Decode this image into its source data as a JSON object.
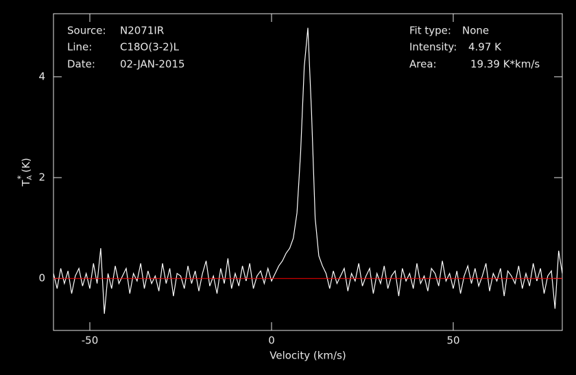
{
  "chart_data": {
    "type": "line",
    "xlabel": "Velocity (km/s)",
    "ylabel": {
      "symbol": "T",
      "subscript": "A",
      "superscript": "*",
      "unit": "(K)"
    },
    "info_left": [
      {
        "label": "Source:",
        "value": "N2071IR"
      },
      {
        "label": "Line:",
        "value": "C18O(3-2)L"
      },
      {
        "label": "Date:",
        "value": "02-JAN-2015"
      }
    ],
    "info_right": [
      {
        "label": "Fit type:",
        "value": "None"
      },
      {
        "label": "Intensity:",
        "value": "4.97 K"
      },
      {
        "label": "Area:",
        "value": "19.39 K*km/s"
      }
    ],
    "xlim": [
      -60,
      80
    ],
    "ylim": [
      -1.03,
      5.25
    ],
    "xticks": [
      -50,
      0,
      50
    ],
    "yticks": [
      0,
      2,
      4
    ],
    "baseline": {
      "value": 0,
      "color": "#ff0000"
    },
    "x": [
      -60,
      -59,
      -58,
      -57,
      -56,
      -55,
      -54,
      -53,
      -52,
      -51,
      -50,
      -49,
      -48,
      -47,
      -46,
      -45,
      -44,
      -43,
      -42,
      -41,
      -40,
      -39,
      -38,
      -37,
      -36,
      -35,
      -34,
      -33,
      -32,
      -31,
      -30,
      -29,
      -28,
      -27,
      -26,
      -25,
      -24,
      -23,
      -22,
      -21,
      -20,
      -19,
      -18,
      -17,
      -16,
      -15,
      -14,
      -13,
      -12,
      -11,
      -10,
      -9,
      -8,
      -7,
      -6,
      -5,
      -4,
      -3,
      -2,
      -1,
      0,
      1,
      2,
      3,
      4,
      5,
      6,
      7,
      8,
      9,
      10,
      11,
      12,
      13,
      14,
      15,
      16,
      17,
      18,
      19,
      20,
      21,
      22,
      23,
      24,
      25,
      26,
      27,
      28,
      29,
      30,
      31,
      32,
      33,
      34,
      35,
      36,
      37,
      38,
      39,
      40,
      41,
      42,
      43,
      44,
      45,
      46,
      47,
      48,
      49,
      50,
      51,
      52,
      53,
      54,
      55,
      56,
      57,
      58,
      59,
      60,
      61,
      62,
      63,
      64,
      65,
      66,
      67,
      68,
      69,
      70,
      71,
      72,
      73,
      74,
      75,
      76,
      77,
      78,
      79,
      80
    ],
    "series": [
      {
        "color": "#ffffff",
        "values": [
          0.1,
          -0.2,
          0.2,
          -0.1,
          0.15,
          -0.3,
          0.05,
          0.2,
          -0.15,
          0.1,
          -0.2,
          0.3,
          -0.1,
          0.6,
          -0.7,
          0.1,
          -0.2,
          0.25,
          -0.1,
          0.05,
          0.2,
          -0.3,
          0.1,
          -0.05,
          0.3,
          -0.2,
          0.15,
          -0.1,
          0.05,
          -0.25,
          0.3,
          -0.1,
          0.2,
          -0.35,
          0.1,
          0.05,
          -0.2,
          0.25,
          -0.1,
          0.15,
          -0.25,
          0.1,
          0.35,
          -0.15,
          0.05,
          -0.3,
          0.2,
          -0.1,
          0.4,
          -0.2,
          0.1,
          -0.15,
          0.25,
          -0.05,
          0.3,
          -0.2,
          0.05,
          0.15,
          -0.1,
          0.2,
          -0.05,
          0.1,
          0.25,
          0.35,
          0.5,
          0.6,
          0.8,
          1.3,
          2.5,
          4.2,
          4.97,
          3.3,
          1.2,
          0.45,
          0.25,
          0.1,
          -0.2,
          0.15,
          -0.1,
          0.05,
          0.2,
          -0.25,
          0.1,
          -0.05,
          0.3,
          -0.15,
          0.05,
          0.2,
          -0.3,
          0.1,
          -0.1,
          0.25,
          -0.2,
          0.05,
          0.15,
          -0.35,
          0.2,
          -0.05,
          0.1,
          -0.2,
          0.3,
          -0.1,
          0.05,
          -0.25,
          0.2,
          0.1,
          -0.15,
          0.35,
          -0.05,
          0.1,
          -0.2,
          0.15,
          -0.3,
          0.05,
          0.25,
          -0.1,
          0.2,
          -0.15,
          0.05,
          0.3,
          -0.25,
          0.1,
          -0.05,
          0.2,
          -0.35,
          0.15,
          0.05,
          -0.1,
          0.25,
          -0.2,
          0.1,
          -0.15,
          0.3,
          -0.05,
          0.2,
          -0.3,
          0.05,
          0.15,
          -0.6,
          0.55,
          0.1
        ]
      }
    ]
  }
}
